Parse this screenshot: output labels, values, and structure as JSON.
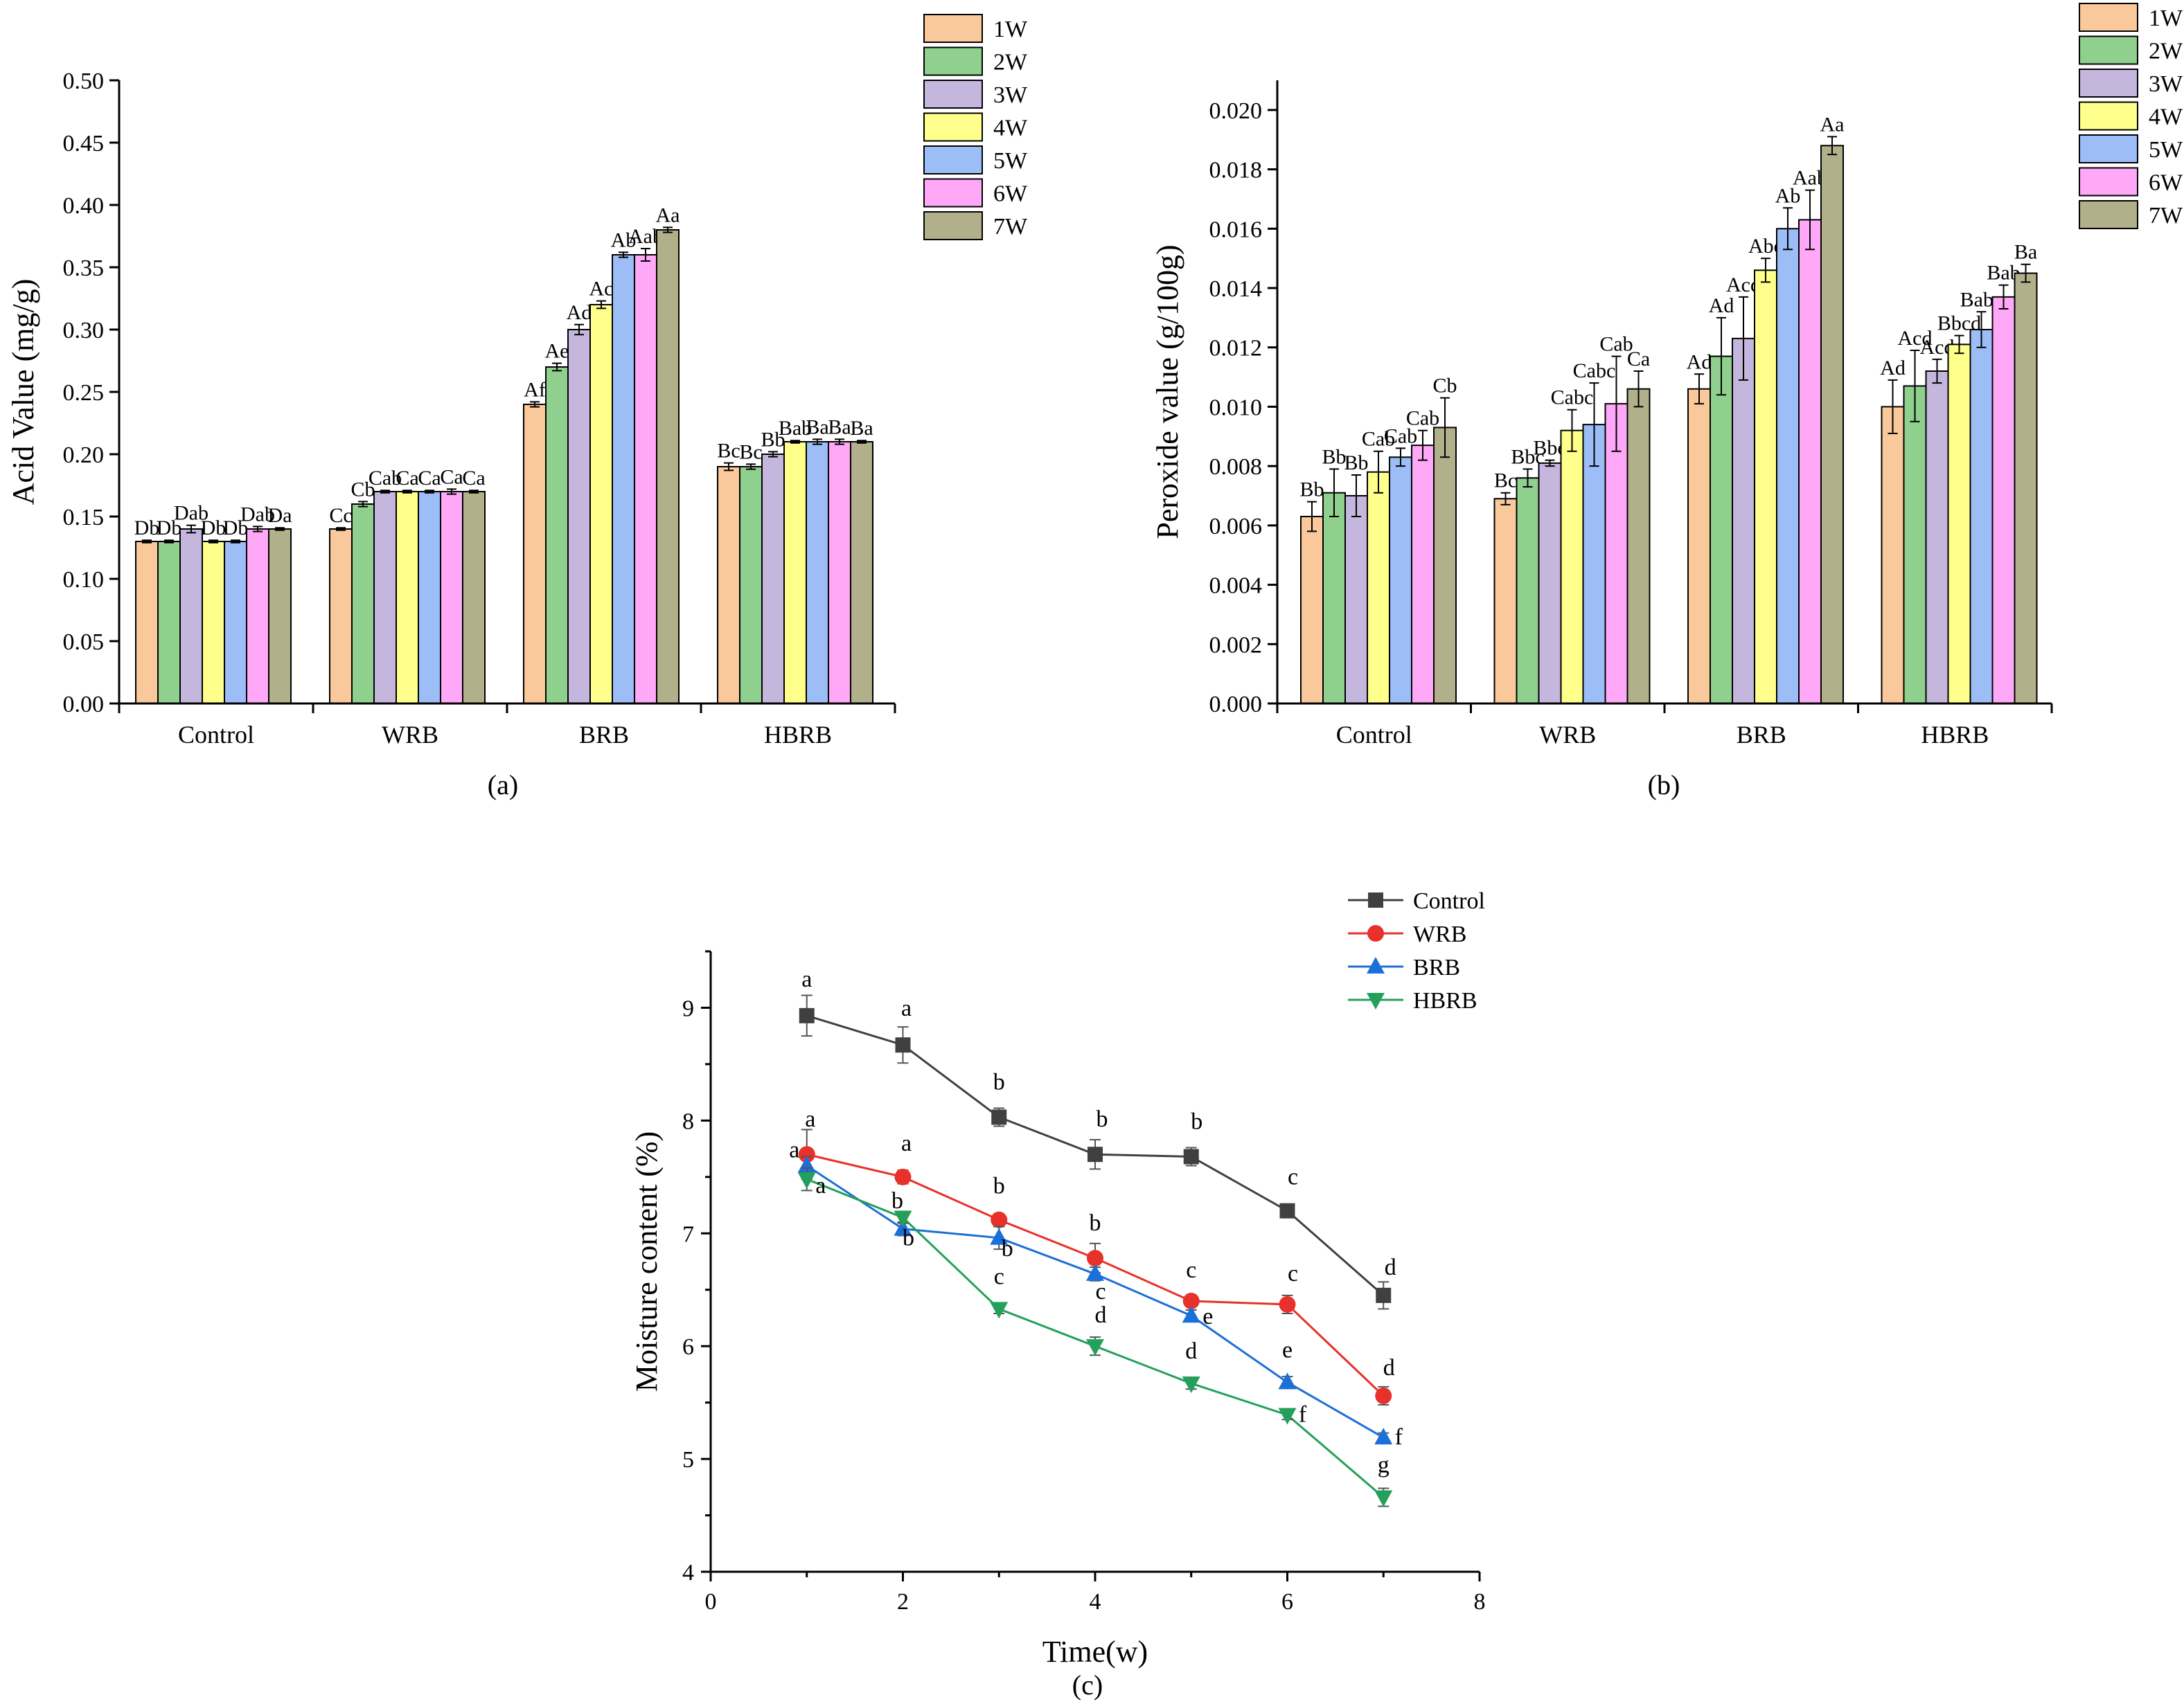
{
  "figure": {
    "panels": [
      "(a)",
      "(b)",
      "(c)"
    ]
  },
  "colors": {
    "weeks": [
      "#F9C89B",
      "#8FD08F",
      "#C4B6DC",
      "#FFFF8C",
      "#9DBDF7",
      "#FFA8F7",
      "#B1B08A"
    ],
    "lines": [
      "#404040",
      "#E8312A",
      "#1B6FD8",
      "#24A05A"
    ]
  },
  "chart_data": [
    {
      "type": "bar",
      "panel": "(a)",
      "title": "",
      "xlabel": "",
      "ylabel": "Acid Value (mg/g)",
      "ylim": [
        0,
        0.5
      ],
      "yticks": [
        "0.00",
        "0.05",
        "0.10",
        "0.15",
        "0.20",
        "0.25",
        "0.30",
        "0.35",
        "0.40",
        "0.45",
        "0.50"
      ],
      "categories": [
        "Control",
        "WRB",
        "BRB",
        "HBRB"
      ],
      "legend_position": "top-right",
      "series": [
        {
          "name": "1W",
          "values": [
            0.13,
            0.14,
            0.24,
            0.19
          ],
          "errors": [
            0.001,
            0.001,
            0.002,
            0.003
          ],
          "letters": [
            "Db",
            "Cc",
            "Af",
            "Bc"
          ]
        },
        {
          "name": "2W",
          "values": [
            0.13,
            0.16,
            0.27,
            0.19
          ],
          "errors": [
            0.001,
            0.002,
            0.003,
            0.002
          ],
          "letters": [
            "Db",
            "Cb",
            "Ae",
            "Bc"
          ]
        },
        {
          "name": "3W",
          "values": [
            0.14,
            0.17,
            0.3,
            0.2
          ],
          "errors": [
            0.003,
            0.001,
            0.004,
            0.002
          ],
          "letters": [
            "Dab",
            "Cab",
            "Ad",
            "Bb"
          ]
        },
        {
          "name": "4W",
          "values": [
            0.13,
            0.17,
            0.32,
            0.21
          ],
          "errors": [
            0.001,
            0.001,
            0.003,
            0.001
          ],
          "letters": [
            "Db",
            "Ca",
            "Ac",
            "Bab"
          ]
        },
        {
          "name": "5W",
          "values": [
            0.13,
            0.17,
            0.36,
            0.21
          ],
          "errors": [
            0.001,
            0.001,
            0.002,
            0.002
          ],
          "letters": [
            "Db",
            "Ca",
            "Ab",
            "Ba"
          ]
        },
        {
          "name": "6W",
          "values": [
            0.14,
            0.17,
            0.36,
            0.21
          ],
          "errors": [
            0.002,
            0.002,
            0.005,
            0.002
          ],
          "letters": [
            "Dab",
            "Ca",
            "Aab",
            "Ba"
          ]
        },
        {
          "name": "7W",
          "values": [
            0.14,
            0.17,
            0.38,
            0.21
          ],
          "errors": [
            0.001,
            0.001,
            0.002,
            0.001
          ],
          "letters": [
            "Da",
            "Ca",
            "Aa",
            "Ba"
          ]
        }
      ]
    },
    {
      "type": "bar",
      "panel": "(b)",
      "title": "",
      "xlabel": "",
      "ylabel": "Peroxide value (g/100g)",
      "ylim": [
        0,
        0.021
      ],
      "yticks": [
        "0.000",
        "0.002",
        "0.004",
        "0.006",
        "0.008",
        "0.010",
        "0.012",
        "0.014",
        "0.016",
        "0.018",
        "0.020"
      ],
      "categories": [
        "Control",
        "WRB",
        "BRB",
        "HBRB"
      ],
      "legend_position": "top-right",
      "series": [
        {
          "name": "1W",
          "values": [
            0.0063,
            0.0069,
            0.0106,
            0.01
          ],
          "errors": [
            0.0005,
            0.0002,
            0.0005,
            0.0009
          ],
          "letters": [
            "Bb",
            "Bc",
            "Ad",
            "Ad"
          ]
        },
        {
          "name": "2W",
          "values": [
            0.0071,
            0.0076,
            0.0117,
            0.0107
          ],
          "errors": [
            0.0008,
            0.0003,
            0.0013,
            0.0012
          ],
          "letters": [
            "Bb",
            "Bbc",
            "Ad",
            "Acd"
          ]
        },
        {
          "name": "3W",
          "values": [
            0.007,
            0.0081,
            0.0123,
            0.0112
          ],
          "errors": [
            0.0007,
            0.0001,
            0.0014,
            0.0004
          ],
          "letters": [
            "Bb",
            "Bbc",
            "Acd",
            "Acd"
          ]
        },
        {
          "name": "4W",
          "values": [
            0.0078,
            0.0092,
            0.0146,
            0.0121
          ],
          "errors": [
            0.0007,
            0.0007,
            0.0004,
            0.0003
          ],
          "letters": [
            "Cab",
            "Cabc",
            "Abc",
            "Bbcd"
          ]
        },
        {
          "name": "5W",
          "values": [
            0.0083,
            0.0094,
            0.016,
            0.0126
          ],
          "errors": [
            0.0003,
            0.0014,
            0.0007,
            0.0006
          ],
          "letters": [
            "Cab",
            "Cabc",
            "Ab",
            "Babc"
          ]
        },
        {
          "name": "6W",
          "values": [
            0.0087,
            0.0101,
            0.0163,
            0.0137
          ],
          "errors": [
            0.0005,
            0.0016,
            0.001,
            0.0004
          ],
          "letters": [
            "Cab",
            "Cab",
            "Aab",
            "Bab"
          ]
        },
        {
          "name": "7W",
          "values": [
            0.0093,
            0.0106,
            0.0188,
            0.0145
          ],
          "errors": [
            0.001,
            0.0006,
            0.0003,
            0.0003
          ],
          "letters": [
            "Cb",
            "Ca",
            "Aa",
            "Ba"
          ]
        }
      ]
    },
    {
      "type": "line",
      "panel": "(c)",
      "title": "",
      "xlabel": "Time(w)",
      "ylabel": "Moisture content (%)",
      "xlim": [
        0,
        8
      ],
      "ylim": [
        4,
        9.5
      ],
      "xticks": [
        0,
        2,
        4,
        6,
        8
      ],
      "yticks": [
        4,
        5,
        6,
        7,
        8,
        9
      ],
      "legend_position": "top-center",
      "x": [
        1,
        2,
        3,
        4,
        5,
        6,
        7
      ],
      "series": [
        {
          "name": "Control",
          "marker": "square",
          "values": [
            8.93,
            8.67,
            8.03,
            7.7,
            7.68,
            7.2,
            6.45
          ],
          "errors": [
            0.18,
            0.16,
            0.08,
            0.13,
            0.08,
            0.05,
            0.12
          ],
          "letters": [
            "a",
            "a",
            "b",
            "b",
            "b",
            "c",
            "d"
          ]
        },
        {
          "name": "WRB",
          "marker": "circle",
          "values": [
            7.7,
            7.5,
            7.12,
            6.78,
            6.4,
            6.37,
            5.56
          ],
          "errors": [
            0.22,
            0.06,
            0.05,
            0.13,
            0.04,
            0.08,
            0.08
          ],
          "letters": [
            "a",
            "a",
            "b",
            "b",
            "c",
            "c",
            "d"
          ]
        },
        {
          "name": "BRB",
          "marker": "triangle-up",
          "values": [
            7.6,
            7.04,
            6.96,
            6.64,
            6.27,
            5.68,
            5.19
          ],
          "errors": [
            0.08,
            0.06,
            0.1,
            0.06,
            0.05,
            0.05,
            0.04
          ],
          "letters": [
            "a",
            "b",
            "b",
            "c",
            "e",
            "e",
            "f"
          ]
        },
        {
          "name": "HBRB",
          "marker": "triangle-down",
          "values": [
            7.48,
            7.14,
            6.33,
            6.0,
            5.67,
            5.39,
            4.66
          ],
          "errors": [
            0.1,
            0.05,
            0.04,
            0.08,
            0.05,
            0.04,
            0.08
          ],
          "letters": [
            "a",
            "b",
            "c",
            "d",
            "d",
            "f",
            "g"
          ]
        }
      ]
    }
  ]
}
